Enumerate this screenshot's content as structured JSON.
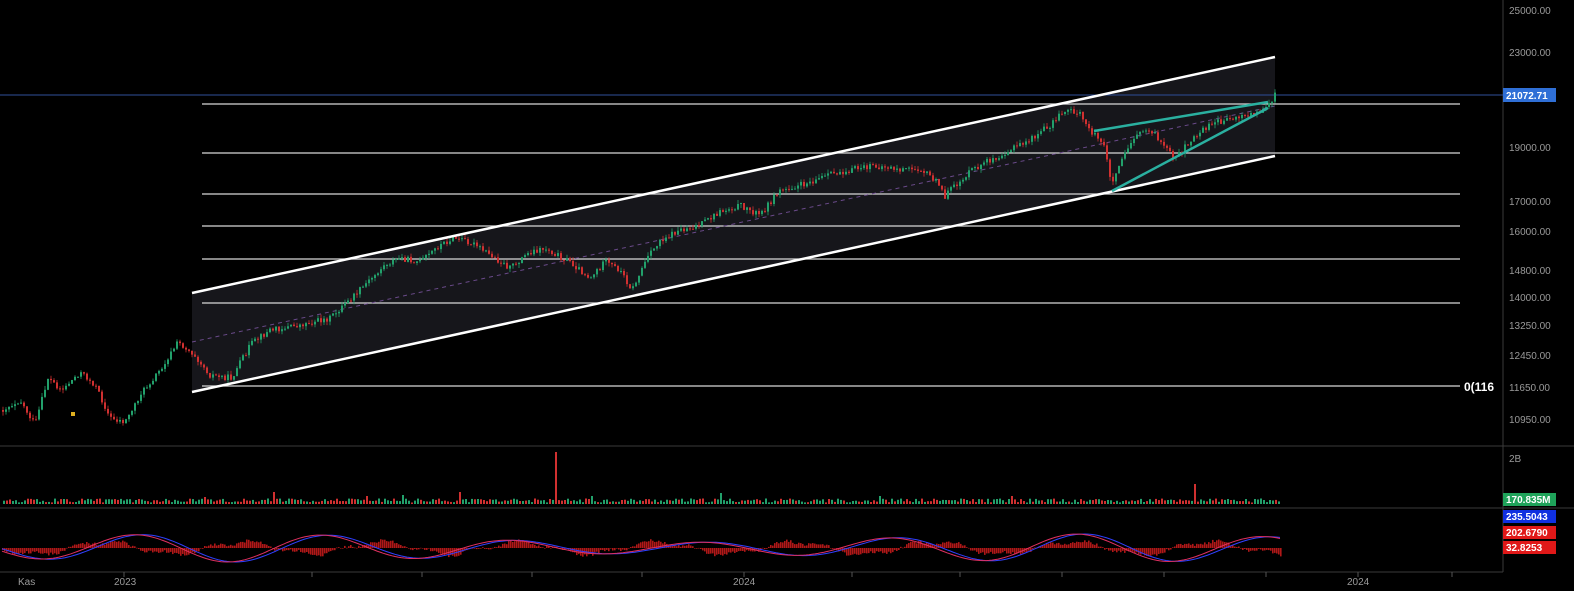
{
  "chart_data": {
    "type": "candlestick",
    "price_axis": {
      "ticks": [
        "25000.00",
        "23000.00",
        "21072.71",
        "19000.00",
        "17000.00",
        "16000.00",
        "14800.00",
        "14000.00",
        "13250.00",
        "12450.00",
        "11650.00",
        "10950.00"
      ],
      "tick_values": [
        25000,
        23000,
        21072.71,
        19000,
        17000,
        16000,
        14800,
        14000,
        13250,
        12450,
        11650,
        10950
      ],
      "scale": "log",
      "range": [
        10400,
        25200
      ],
      "last_price": "21072.71"
    },
    "time_axis": {
      "labels": [
        "Kas",
        "2023",
        "2024",
        "2024"
      ]
    },
    "fib_levels": [
      20800,
      19000,
      17300,
      16200,
      15000,
      13800,
      11650
    ],
    "fib_label": "0(116",
    "channel": {
      "upper": [
        [
          0,
          14500
        ],
        [
          1,
          22700
        ]
      ],
      "lower": [
        [
          0,
          11400
        ],
        [
          1,
          18500
        ]
      ]
    },
    "wedge": {
      "upper": [
        [
          0,
          19800
        ],
        [
          1,
          21000
        ]
      ],
      "lower": [
        [
          0,
          17100
        ],
        [
          1,
          20600
        ]
      ]
    },
    "volume_panel": {
      "max_label": "2B",
      "last_value": "170.835M"
    },
    "macd_panel": {
      "macd": "235.5043",
      "signal": "202.6790",
      "histogram": "32.8253"
    }
  },
  "colors": {
    "background": "#000000",
    "up": "#22a06b",
    "down": "#d03030",
    "channel": "#ffffff",
    "wedge": "#2ab0a0",
    "price_badge": "#2f6fd6",
    "volume_badge": "#1fa35a",
    "macd_badge": "#1030e0",
    "signal_badge": "#e01818"
  }
}
